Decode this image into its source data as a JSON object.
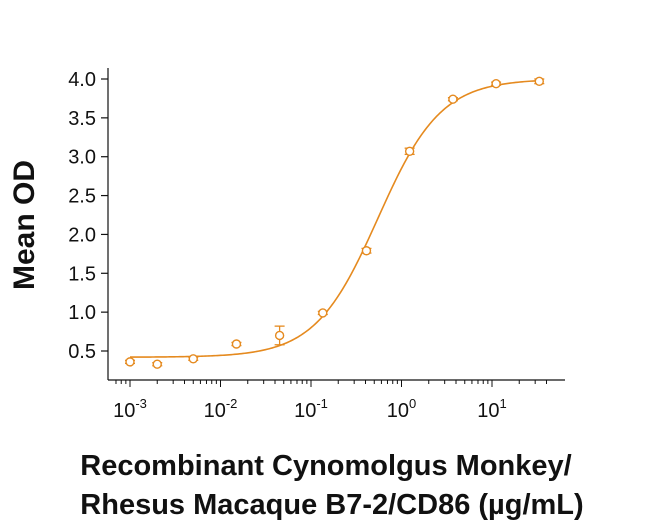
{
  "chart_data": {
    "type": "scatter",
    "title": "",
    "xlabel_lines": [
      "Recombinant Cynomolgus Monkey/",
      "Rhesus Macaque B7-2/CD86 (µg/mL)"
    ],
    "ylabel": "Mean OD",
    "x_scale": "log",
    "xlim": [
      0.0007,
      45
    ],
    "ylim": [
      0.22,
      4.1
    ],
    "x_ticks": [
      {
        "value": 0.001,
        "base": "10",
        "exp": "-3"
      },
      {
        "value": 0.01,
        "base": "10",
        "exp": "-2"
      },
      {
        "value": 0.1,
        "base": "10",
        "exp": "-1"
      },
      {
        "value": 1,
        "base": "10",
        "exp": "0"
      },
      {
        "value": 10,
        "base": "10",
        "exp": "1"
      }
    ],
    "y_ticks": [
      {
        "value": 0.5,
        "label": "0.5"
      },
      {
        "value": 1.0,
        "label": "1.0"
      },
      {
        "value": 1.5,
        "label": "1.5"
      },
      {
        "value": 2.0,
        "label": "2.0"
      },
      {
        "value": 2.5,
        "label": "2.5"
      },
      {
        "value": 3.0,
        "label": "3.0"
      },
      {
        "value": 3.5,
        "label": "3.5"
      },
      {
        "value": 4.0,
        "label": "4.0"
      }
    ],
    "grid": false,
    "color": "#E58A1F",
    "points": [
      {
        "x": 0.001,
        "y": 0.36,
        "err": 0.02
      },
      {
        "x": 0.002,
        "y": 0.33,
        "err": 0.02
      },
      {
        "x": 0.005,
        "y": 0.4,
        "err": 0.02
      },
      {
        "x": 0.015,
        "y": 0.59,
        "err": 0.02
      },
      {
        "x": 0.045,
        "y": 0.7,
        "err": 0.12
      },
      {
        "x": 0.135,
        "y": 0.99,
        "err": 0.02
      },
      {
        "x": 0.41,
        "y": 1.79,
        "err": 0.03
      },
      {
        "x": 1.23,
        "y": 3.07,
        "err": 0.04
      },
      {
        "x": 3.7,
        "y": 3.74,
        "err": 0.02
      },
      {
        "x": 11.1,
        "y": 3.94,
        "err": 0.02
      },
      {
        "x": 33.3,
        "y": 3.97,
        "err": 0.03
      }
    ],
    "fit": {
      "model": "4PL",
      "bottom": 0.42,
      "top": 4.0,
      "ec50": 0.55,
      "hill": 1.25
    }
  }
}
